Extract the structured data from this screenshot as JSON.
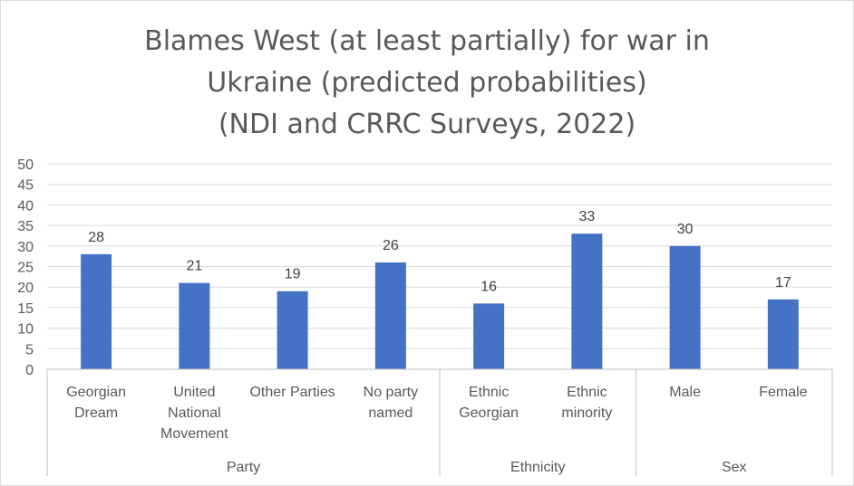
{
  "chart_data": {
    "type": "bar",
    "title_lines": [
      "Blames West (at least partially) for war in",
      "Ukraine (predicted probabilities)",
      "(NDI and CRRC Surveys, 2022)"
    ],
    "categories": [
      [
        "Georgian",
        "Dream"
      ],
      [
        "United",
        "National",
        "Movement"
      ],
      [
        "Other Parties"
      ],
      [
        "No party",
        "named"
      ],
      [
        "Ethnic",
        "Georgian"
      ],
      [
        "Ethnic",
        "minority"
      ],
      [
        "Male"
      ],
      [
        "Female"
      ]
    ],
    "groups": [
      {
        "name": "Party",
        "count": 4
      },
      {
        "name": "Ethnicity",
        "count": 2
      },
      {
        "name": "Sex",
        "count": 2
      }
    ],
    "values": [
      28,
      21,
      19,
      26,
      16,
      33,
      30,
      17
    ],
    "ylim": [
      0,
      50
    ],
    "yticks": [
      0,
      5,
      10,
      15,
      20,
      25,
      30,
      35,
      40,
      45,
      50
    ],
    "grid": true,
    "bar_color": "#4472c4",
    "grid_color": "#d9d9d9"
  }
}
